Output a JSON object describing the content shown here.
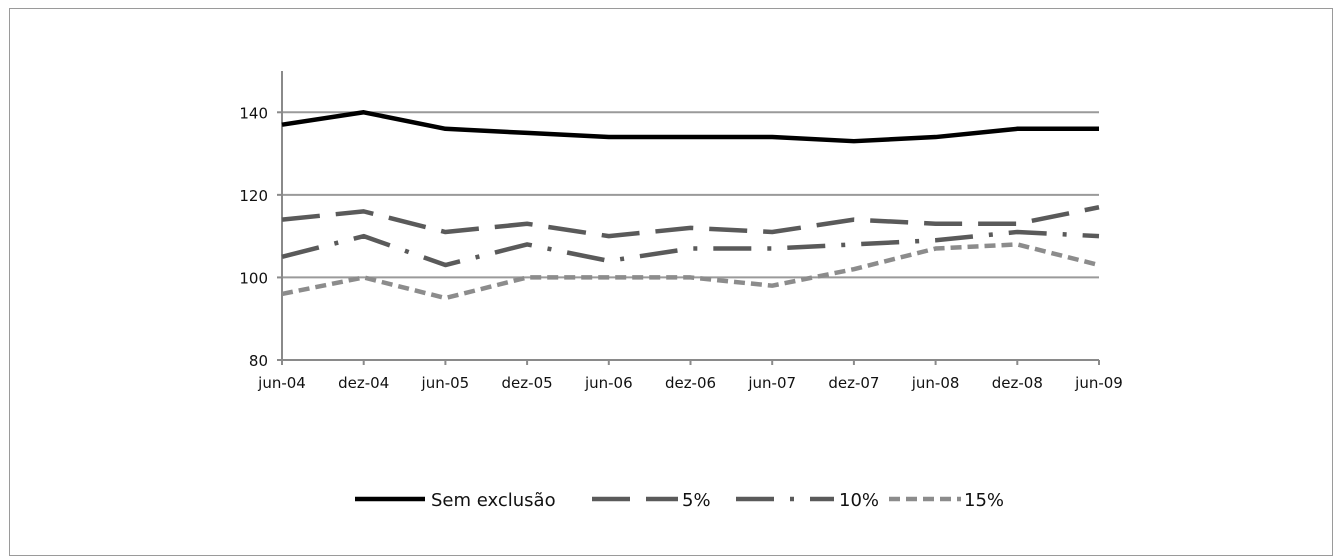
{
  "chart_data": {
    "type": "line",
    "title": "",
    "xlabel": "",
    "ylabel": "",
    "categories": [
      "jun-04",
      "dez-04",
      "jun-05",
      "dez-05",
      "jun-06",
      "dez-06",
      "jun-07",
      "dez-07",
      "jun-08",
      "dez-08",
      "jun-09"
    ],
    "ylim": [
      80,
      150
    ],
    "yticks": [
      80,
      100,
      120,
      140
    ],
    "grid": true,
    "legend_position": "bottom",
    "series": [
      {
        "name": "Sem exclusão",
        "color": "#000000",
        "style": "solid",
        "values": [
          137,
          140,
          136,
          135,
          134,
          134,
          134,
          133,
          134,
          136,
          136
        ]
      },
      {
        "name": "5%",
        "color": "#5a5a5a",
        "style": "long-dash",
        "values": [
          114,
          116,
          111,
          113,
          110,
          112,
          111,
          114,
          113,
          113,
          117
        ]
      },
      {
        "name": "10%",
        "color": "#5a5a5a",
        "style": "dash-dot",
        "values": [
          105,
          110,
          103,
          108,
          104,
          107,
          107,
          108,
          109,
          111,
          110
        ]
      },
      {
        "name": "15%",
        "color": "#8c8c8c",
        "style": "short-dash",
        "values": [
          96,
          100,
          95,
          100,
          100,
          100,
          98,
          102,
          107,
          108,
          103
        ]
      }
    ]
  }
}
